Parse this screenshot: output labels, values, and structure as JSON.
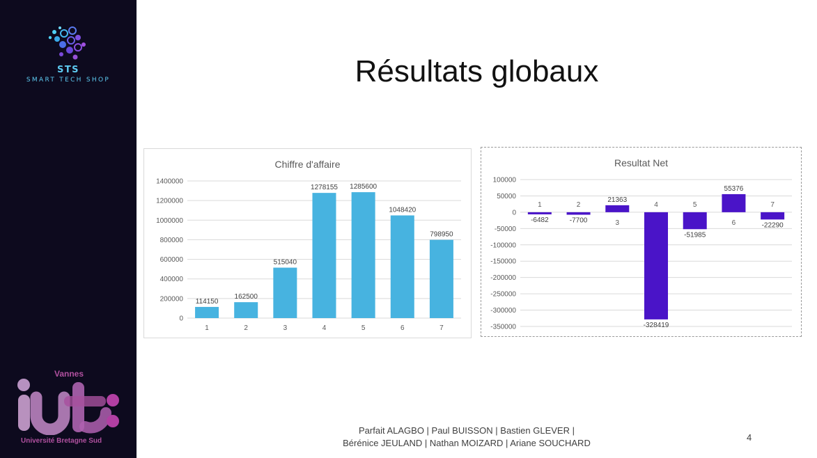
{
  "sidebar": {
    "brand_name": "STS",
    "brand_tagline": "SMART TECH SHOP",
    "school_city": "Vannes",
    "school_university": "Université Bretagne Sud"
  },
  "slide": {
    "title": "Résultats globaux",
    "footer_line1": "Parfait ALAGBO | Paul BUISSON | Bastien GLEVER |",
    "footer_line2": "Bérénice JEULAND | Nathan MOIZARD | Ariane SOUCHARD",
    "page_number": "4"
  },
  "colors": {
    "sidebar_bg": "#0d0a1e",
    "ca_bar": "#47b3e0",
    "rn_bar": "#4a14c8",
    "brand": "#5ecbf2",
    "iut": "#b0509f"
  },
  "chart_data": [
    {
      "type": "bar",
      "title": "Chiffre d'affaire",
      "categories": [
        "1",
        "2",
        "3",
        "4",
        "5",
        "6",
        "7"
      ],
      "values": [
        114150,
        162500,
        515040,
        1278155,
        1285600,
        1048420,
        798950
      ],
      "data_labels": [
        "114150",
        "162500",
        "515040",
        "1278155",
        "1285600",
        "1048420",
        "798950"
      ],
      "yticks": [
        "0",
        "200000",
        "400000",
        "600000",
        "800000",
        "1000000",
        "1200000",
        "1400000"
      ],
      "ylim": [
        0,
        1400000
      ],
      "grid": true,
      "legend": "none"
    },
    {
      "type": "bar",
      "title": "Resultat Net",
      "categories": [
        "1",
        "2",
        "3",
        "4",
        "5",
        "6",
        "7"
      ],
      "values": [
        -6482,
        -7700,
        21363,
        -328419,
        -51985,
        55376,
        -22290
      ],
      "data_labels": [
        "-6482",
        "-7700",
        "21363",
        "-328419",
        "-51985",
        "55376",
        "-22290"
      ],
      "yticks": [
        "-350000",
        "-300000",
        "-250000",
        "-200000",
        "-150000",
        "-100000",
        "-50000",
        "0",
        "50000",
        "100000"
      ],
      "ylim": [
        -350000,
        100000
      ],
      "grid": true,
      "legend": "none"
    }
  ]
}
